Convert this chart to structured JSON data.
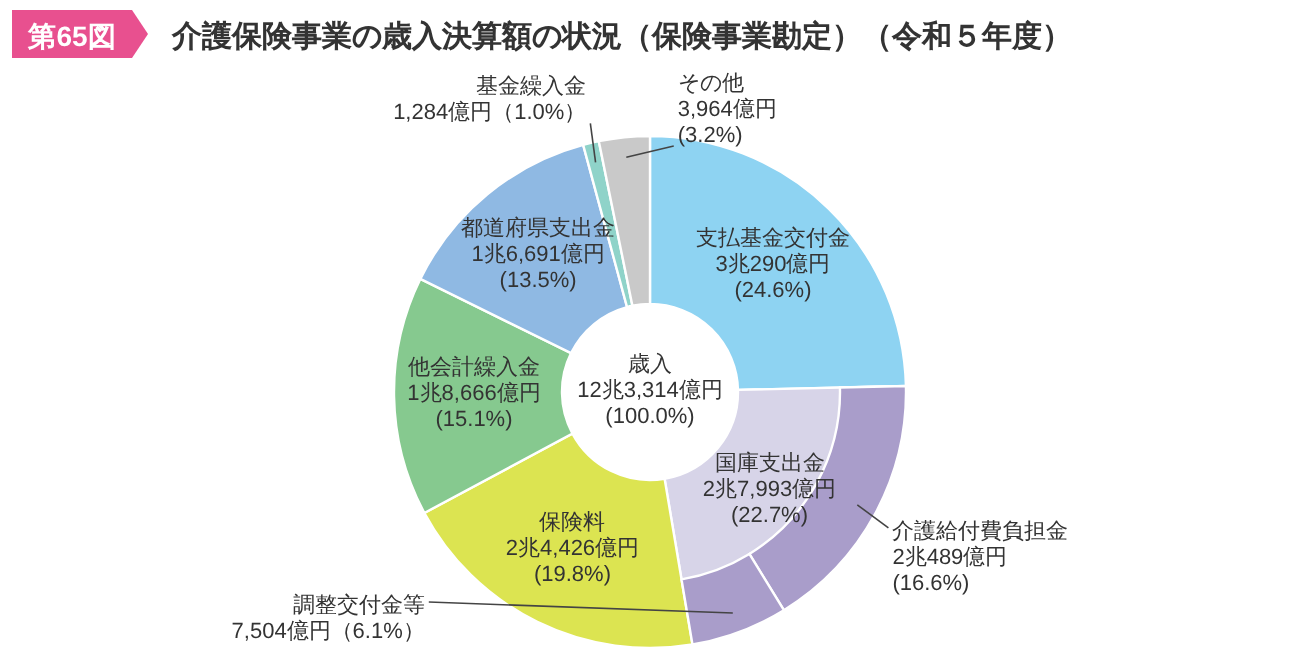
{
  "chart_data": [
    {
      "type": "donut",
      "title": "介護保険事業の歳入決算額の状況（保険事業勘定）（令和５年度）",
      "annotations": [
        "第65図",
        "歳入\n12兆3,314億円\n(100.0%)"
      ],
      "categories": [
        "支払基金交付金",
        "国庫支出金",
        "保険料",
        "他会計繰入金",
        "都道府県支出金",
        "基金繰入金",
        "その他"
      ],
      "values": [
        24.6,
        22.7,
        19.8,
        15.1,
        13.5,
        1.0,
        3.2
      ],
      "value_labels": [
        "3兆290億円\n(24.6%)",
        "2兆7,993億円\n(22.7%)",
        "2兆4,426億円\n(19.8%)",
        "1兆8,666億円\n(15.1%)",
        "1兆6,691億円\n(13.5%)",
        "1,284億円（1.0%）",
        "3,964億円\n(3.2%)"
      ],
      "colors": [
        "#8ed3f2",
        "#d7d4e8",
        "#dce451",
        "#86c98f",
        "#8fb9e3",
        "#8fd3c9",
        "#c9c9c9"
      ]
    },
    {
      "type": "donut",
      "categories": [
        "介護給付費負担金",
        "調整交付金等"
      ],
      "values": [
        16.6,
        6.1
      ],
      "value_labels": [
        "2兆489億円\n(16.6%)",
        "7,504億円（6.1%）"
      ],
      "colors": [
        "#a99dca",
        "#a99dca"
      ]
    }
  ]
}
